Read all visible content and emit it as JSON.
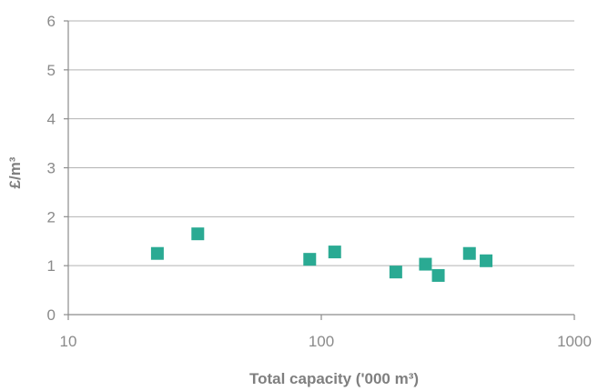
{
  "chart_data": {
    "type": "scatter",
    "title": "",
    "xlabel": "Total capacity ('000 m³)",
    "ylabel": "£/m³",
    "x_scale": "log",
    "xlim": [
      10,
      1000
    ],
    "ylim": [
      0,
      6
    ],
    "x_ticks": [
      10,
      100,
      1000
    ],
    "x_tick_labels": [
      "10",
      "100",
      "1000"
    ],
    "y_ticks": [
      0,
      1,
      2,
      3,
      4,
      5,
      6
    ],
    "y_tick_labels": [
      "0",
      "1",
      "2",
      "3",
      "4",
      "5",
      "6"
    ],
    "grid": "horizontal",
    "legend": "none",
    "marker": "square",
    "color": "#2aaa93",
    "series": [
      {
        "points": [
          {
            "x": 22.5,
            "y": 1.25
          },
          {
            "x": 32.5,
            "y": 1.65
          },
          {
            "x": 90,
            "y": 1.13
          },
          {
            "x": 113,
            "y": 1.28
          },
          {
            "x": 197,
            "y": 0.87
          },
          {
            "x": 258,
            "y": 1.03
          },
          {
            "x": 290,
            "y": 0.8
          },
          {
            "x": 385,
            "y": 1.25
          },
          {
            "x": 448,
            "y": 1.1
          }
        ]
      }
    ]
  }
}
